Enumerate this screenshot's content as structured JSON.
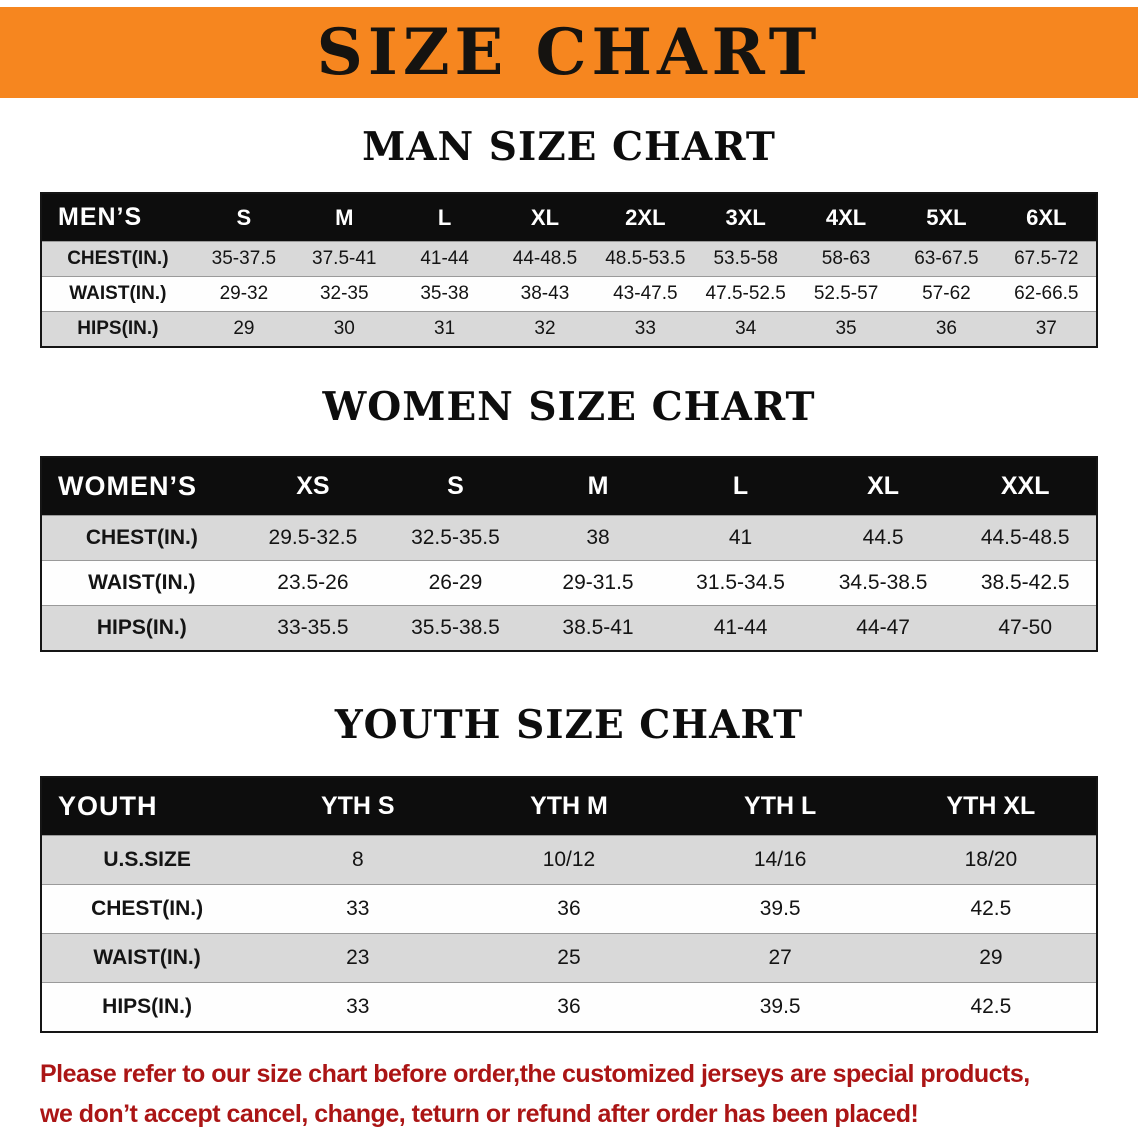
{
  "banner": {
    "title": "SIZE CHART"
  },
  "colors": {
    "banner_bg": "#f6861f",
    "table_header_bg": "#0d0d0d",
    "row_shaded": "#d9d9d9",
    "row_plain": "#fefefe",
    "note_text": "#ab1515"
  },
  "sections": [
    {
      "heading": "MAN SIZE CHART",
      "table": {
        "header": [
          "MEN’S",
          "S",
          "M",
          "L",
          "XL",
          "2XL",
          "3XL",
          "4XL",
          "5XL",
          "6XL"
        ],
        "rows": [
          [
            "CHEST(IN.)",
            "35-37.5",
            "37.5-41",
            "41-44",
            "44-48.5",
            "48.5-53.5",
            "53.5-58",
            "58-63",
            "63-67.5",
            "67.5-72"
          ],
          [
            "WAIST(IN.)",
            "29-32",
            "32-35",
            "35-38",
            "38-43",
            "43-47.5",
            "47.5-52.5",
            "52.5-57",
            "57-62",
            "62-66.5"
          ],
          [
            "HIPS(IN.)",
            "29",
            "30",
            "31",
            "32",
            "33",
            "34",
            "35",
            "36",
            "37"
          ]
        ]
      }
    },
    {
      "heading": "WOMEN SIZE CHART",
      "table": {
        "header": [
          "WOMEN’S",
          "XS",
          "S",
          "M",
          "L",
          "XL",
          "XXL"
        ],
        "rows": [
          [
            "CHEST(IN.)",
            "29.5-32.5",
            "32.5-35.5",
            "38",
            "41",
            "44.5",
            "44.5-48.5"
          ],
          [
            "WAIST(IN.)",
            "23.5-26",
            "26-29",
            "29-31.5",
            "31.5-34.5",
            "34.5-38.5",
            "38.5-42.5"
          ],
          [
            "HIPS(IN.)",
            "33-35.5",
            "35.5-38.5",
            "38.5-41",
            "41-44",
            "44-47",
            "47-50"
          ]
        ]
      }
    },
    {
      "heading": "YOUTH SIZE CHART",
      "table": {
        "header": [
          "YOUTH",
          "YTH S",
          "YTH M",
          "YTH L",
          "YTH XL"
        ],
        "rows": [
          [
            "U.S.SIZE",
            "8",
            "10/12",
            "14/16",
            "18/20"
          ],
          [
            "CHEST(IN.)",
            "33",
            "36",
            "39.5",
            "42.5"
          ],
          [
            "WAIST(IN.)",
            "23",
            "25",
            "27",
            "29"
          ],
          [
            "HIPS(IN.)",
            "33",
            "36",
            "39.5",
            "42.5"
          ]
        ]
      }
    }
  ],
  "footer_note": {
    "line1": "Please refer to our size chart before order,the customized jerseys are special products,",
    "line2": "we don’t accept cancel, change, teturn or refund after order has been placed!"
  }
}
